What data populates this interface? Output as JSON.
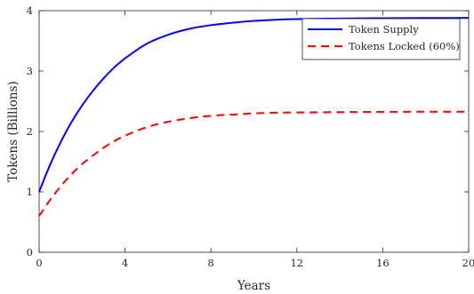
{
  "chart_data": {
    "type": "line",
    "xlabel": "Years",
    "ylabel": "Tokens (Billions)",
    "xlim": [
      0,
      20
    ],
    "ylim": [
      0,
      4
    ],
    "xticks": [
      0,
      4,
      8,
      12,
      16,
      20
    ],
    "yticks": [
      0,
      1,
      2,
      3,
      4
    ],
    "grid": false,
    "legend_position": "top-right",
    "series": [
      {
        "name": "Token Supply",
        "color": "#0000ff",
        "line_style": "solid",
        "x": [
          0,
          0.5,
          1,
          1.5,
          2,
          2.5,
          3,
          3.5,
          4,
          5,
          6,
          7,
          8,
          9,
          10,
          11,
          12,
          14,
          16,
          18,
          20
        ],
        "y": [
          1.0,
          1.44,
          1.82,
          2.15,
          2.43,
          2.67,
          2.88,
          3.06,
          3.21,
          3.45,
          3.6,
          3.7,
          3.76,
          3.8,
          3.83,
          3.85,
          3.86,
          3.87,
          3.875,
          3.878,
          3.88
        ]
      },
      {
        "name": "Tokens Locked (60%)",
        "color": "#ff0000",
        "line_style": "dashed",
        "x": [
          0,
          0.5,
          1,
          1.5,
          2,
          2.5,
          3,
          3.5,
          4,
          5,
          6,
          7,
          8,
          9,
          10,
          11,
          12,
          14,
          16,
          18,
          20
        ],
        "y": [
          0.6,
          0.86,
          1.09,
          1.29,
          1.46,
          1.6,
          1.73,
          1.84,
          1.93,
          2.07,
          2.16,
          2.22,
          2.26,
          2.28,
          2.3,
          2.31,
          2.315,
          2.32,
          2.325,
          2.327,
          2.328
        ]
      }
    ]
  }
}
